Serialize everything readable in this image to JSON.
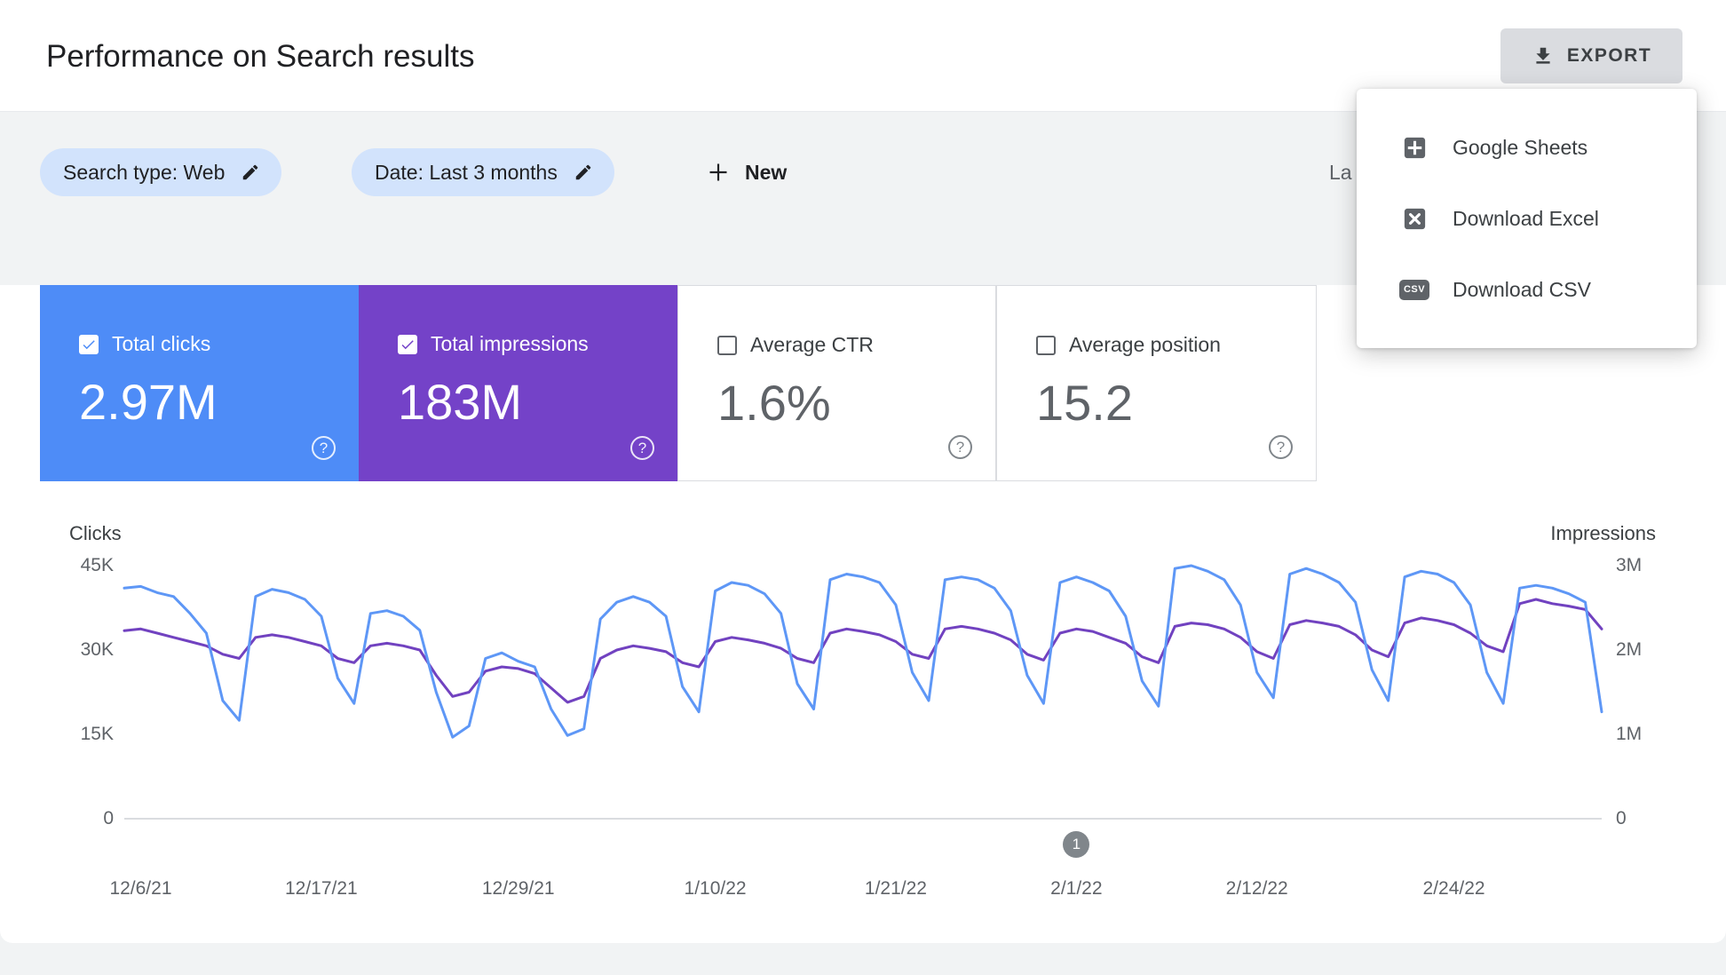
{
  "header": {
    "title": "Performance on Search results",
    "export_label": "EXPORT"
  },
  "export_menu": {
    "items": [
      {
        "label": "Google Sheets",
        "icon": "google-sheets-icon"
      },
      {
        "label": "Download Excel",
        "icon": "excel-icon"
      },
      {
        "label": "Download CSV",
        "icon": "csv-icon",
        "icon_text": "CSV"
      }
    ]
  },
  "filters": {
    "search_type_chip": "Search type: Web",
    "date_chip": "Date: Last 3 months",
    "new_button_label": "New",
    "clipped_text": "La"
  },
  "icons": {
    "help_glyph": "?"
  },
  "metric_cards": [
    {
      "label": "Total clicks",
      "value": "2.97M",
      "checked": true,
      "color": "#4e8cf7"
    },
    {
      "label": "Total impressions",
      "value": "183M",
      "checked": true,
      "color": "#7442c8"
    },
    {
      "label": "Average CTR",
      "value": "1.6%",
      "checked": false,
      "color": "#ffffff"
    },
    {
      "label": "Average position",
      "value": "15.2",
      "checked": false,
      "color": "#ffffff"
    }
  ],
  "chart_data": {
    "type": "line",
    "x_unit": "day",
    "start_date": "12/5/21",
    "x_days": 91,
    "grid": "off",
    "left_axis": {
      "title": "Clicks",
      "max": 45000,
      "ticks": [
        {
          "label": "45K",
          "value": 45000
        },
        {
          "label": "30K",
          "value": 30000
        },
        {
          "label": "15K",
          "value": 15000
        },
        {
          "label": "0",
          "value": 0
        }
      ]
    },
    "right_axis": {
      "title": "Impressions",
      "max": 3000000,
      "ticks": [
        {
          "label": "3M",
          "value": 3000000
        },
        {
          "label": "2M",
          "value": 2000000
        },
        {
          "label": "1M",
          "value": 1000000
        },
        {
          "label": "0",
          "value": 0
        }
      ]
    },
    "x_ticks": [
      {
        "label": "12/6/21",
        "day": 1
      },
      {
        "label": "12/17/21",
        "day": 12
      },
      {
        "label": "12/29/21",
        "day": 24
      },
      {
        "label": "1/10/22",
        "day": 36
      },
      {
        "label": "1/21/22",
        "day": 47
      },
      {
        "label": "2/1/22",
        "day": 58
      },
      {
        "label": "2/12/22",
        "day": 69
      },
      {
        "label": "2/24/22",
        "day": 81
      }
    ],
    "annotation": {
      "label": "1",
      "day": 58
    },
    "series": [
      {
        "name": "Impressions",
        "axis": "right",
        "color": "#7142c0",
        "values": [
          2230000,
          2250000,
          2200000,
          2150000,
          2100000,
          2050000,
          1950000,
          1900000,
          2150000,
          2180000,
          2150000,
          2100000,
          2050000,
          1900000,
          1850000,
          2050000,
          2080000,
          2050000,
          2000000,
          1700000,
          1450000,
          1500000,
          1750000,
          1800000,
          1780000,
          1720000,
          1550000,
          1380000,
          1450000,
          1900000,
          2000000,
          2050000,
          2020000,
          1980000,
          1850000,
          1800000,
          2100000,
          2150000,
          2120000,
          2080000,
          2020000,
          1900000,
          1850000,
          2200000,
          2250000,
          2220000,
          2180000,
          2100000,
          1950000,
          1900000,
          2250000,
          2280000,
          2250000,
          2200000,
          2120000,
          1950000,
          1880000,
          2200000,
          2250000,
          2220000,
          2150000,
          2080000,
          1920000,
          1850000,
          2280000,
          2320000,
          2300000,
          2250000,
          2150000,
          1980000,
          1900000,
          2300000,
          2350000,
          2320000,
          2280000,
          2180000,
          2000000,
          1920000,
          2320000,
          2380000,
          2350000,
          2300000,
          2200000,
          2050000,
          1980000,
          2550000,
          2600000,
          2550000,
          2520000,
          2480000,
          2250000
        ]
      },
      {
        "name": "Clicks",
        "axis": "left",
        "color": "#5e97f6",
        "values": [
          41000,
          41300,
          40200,
          39500,
          36500,
          33000,
          21000,
          17500,
          39500,
          40800,
          40200,
          39000,
          36000,
          25000,
          20500,
          36500,
          37000,
          36000,
          33500,
          22500,
          14500,
          16500,
          28500,
          29500,
          28000,
          27000,
          19500,
          14800,
          16000,
          35500,
          38500,
          39500,
          38500,
          36000,
          23500,
          19000,
          40500,
          42000,
          41500,
          40000,
          36500,
          24000,
          19500,
          42500,
          43500,
          43000,
          42000,
          38000,
          26000,
          21000,
          42500,
          43000,
          42500,
          41000,
          37000,
          25500,
          20500,
          42000,
          43000,
          42000,
          40500,
          36000,
          24500,
          20000,
          44500,
          45000,
          44000,
          42500,
          38000,
          26000,
          21500,
          43500,
          44500,
          43500,
          42000,
          38500,
          26500,
          21000,
          43000,
          44000,
          43500,
          42000,
          38000,
          26000,
          20500,
          41000,
          41500,
          41000,
          40000,
          38500,
          19000
        ]
      }
    ]
  }
}
